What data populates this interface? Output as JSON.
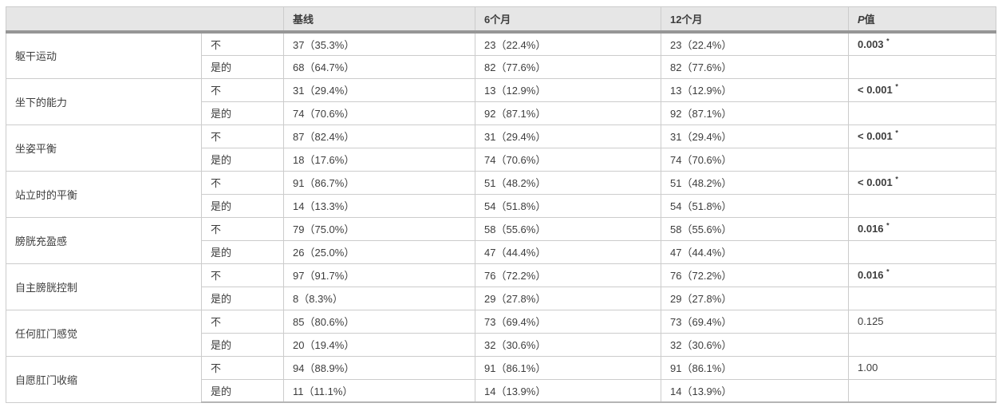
{
  "colors": {
    "header_bg": "#e6e6e6",
    "thick_rule": "#969696",
    "cell_border": "#cccccc",
    "bottom_rule": "#b5b5b5",
    "text": "#3d3d3d",
    "page_bg": "#ffffff"
  },
  "table": {
    "headers": {
      "spacer": "",
      "baseline": "基线",
      "month6": "6个月",
      "month12": "12个月",
      "p_prefix": "P",
      "p_suffix": "值"
    },
    "sig_marker": "*",
    "groups": [
      {
        "category": "躯干运动",
        "no_label": "不",
        "yes_label": "是的",
        "no": {
          "baseline": "37（35.3%）",
          "month6": "23（22.4%）",
          "month12": "23（22.4%）"
        },
        "yes": {
          "baseline": "68（64.7%）",
          "month6": "82（77.6%）",
          "month12": "82（77.6%）"
        },
        "p": "0.003",
        "p_significant": true
      },
      {
        "category": "坐下的能力",
        "no_label": "不",
        "yes_label": "是的",
        "no": {
          "baseline": "31（29.4%）",
          "month6": "13（12.9%）",
          "month12": "13（12.9%）"
        },
        "yes": {
          "baseline": "74（70.6%）",
          "month6": "92（87.1%）",
          "month12": "92（87.1%）"
        },
        "p": "< 0.001",
        "p_significant": true
      },
      {
        "category": "坐姿平衡",
        "no_label": "不",
        "yes_label": "是的",
        "no": {
          "baseline": "87（82.4%）",
          "month6": "31（29.4%）",
          "month12": "31（29.4%）"
        },
        "yes": {
          "baseline": "18（17.6%）",
          "month6": "74（70.6%）",
          "month12": "74（70.6%）"
        },
        "p": "< 0.001",
        "p_significant": true
      },
      {
        "category": "站立时的平衡",
        "no_label": "不",
        "yes_label": "是的",
        "no": {
          "baseline": "91（86.7%）",
          "month6": "51（48.2%）",
          "month12": "51（48.2%）"
        },
        "yes": {
          "baseline": "14（13.3%）",
          "month6": "54（51.8%）",
          "month12": "54（51.8%）"
        },
        "p": "< 0.001",
        "p_significant": true
      },
      {
        "category": "膀胱充盈感",
        "no_label": "不",
        "yes_label": "是的",
        "no": {
          "baseline": "79（75.0%）",
          "month6": "58（55.6%）",
          "month12": "58（55.6%）"
        },
        "yes": {
          "baseline": "26（25.0%）",
          "month6": "47（44.4%）",
          "month12": "47（44.4%）"
        },
        "p": "0.016",
        "p_significant": true
      },
      {
        "category": "自主膀胱控制",
        "no_label": "不",
        "yes_label": "是的",
        "no": {
          "baseline": "97（91.7%）",
          "month6": "76（72.2%）",
          "month12": "76（72.2%）"
        },
        "yes": {
          "baseline": "8（8.3%）",
          "month6": "29（27.8%）",
          "month12": "29（27.8%）"
        },
        "p": "0.016",
        "p_significant": true
      },
      {
        "category": "任何肛门感觉",
        "no_label": "不",
        "yes_label": "是的",
        "no": {
          "baseline": "85（80.6%）",
          "month6": "73（69.4%）",
          "month12": "73（69.4%）"
        },
        "yes": {
          "baseline": "20（19.4%）",
          "month6": "32（30.6%）",
          "month12": "32（30.6%）"
        },
        "p": "0.125",
        "p_significant": false
      },
      {
        "category": "自愿肛门收缩",
        "no_label": "不",
        "yes_label": "是的",
        "no": {
          "baseline": "94（88.9%）",
          "month6": "91（86.1%）",
          "month12": "91（86.1%）"
        },
        "yes": {
          "baseline": "11（11.1%）",
          "month6": "14（13.9%）",
          "month12": "14（13.9%）"
        },
        "p": "1.00",
        "p_significant": false
      }
    ]
  }
}
